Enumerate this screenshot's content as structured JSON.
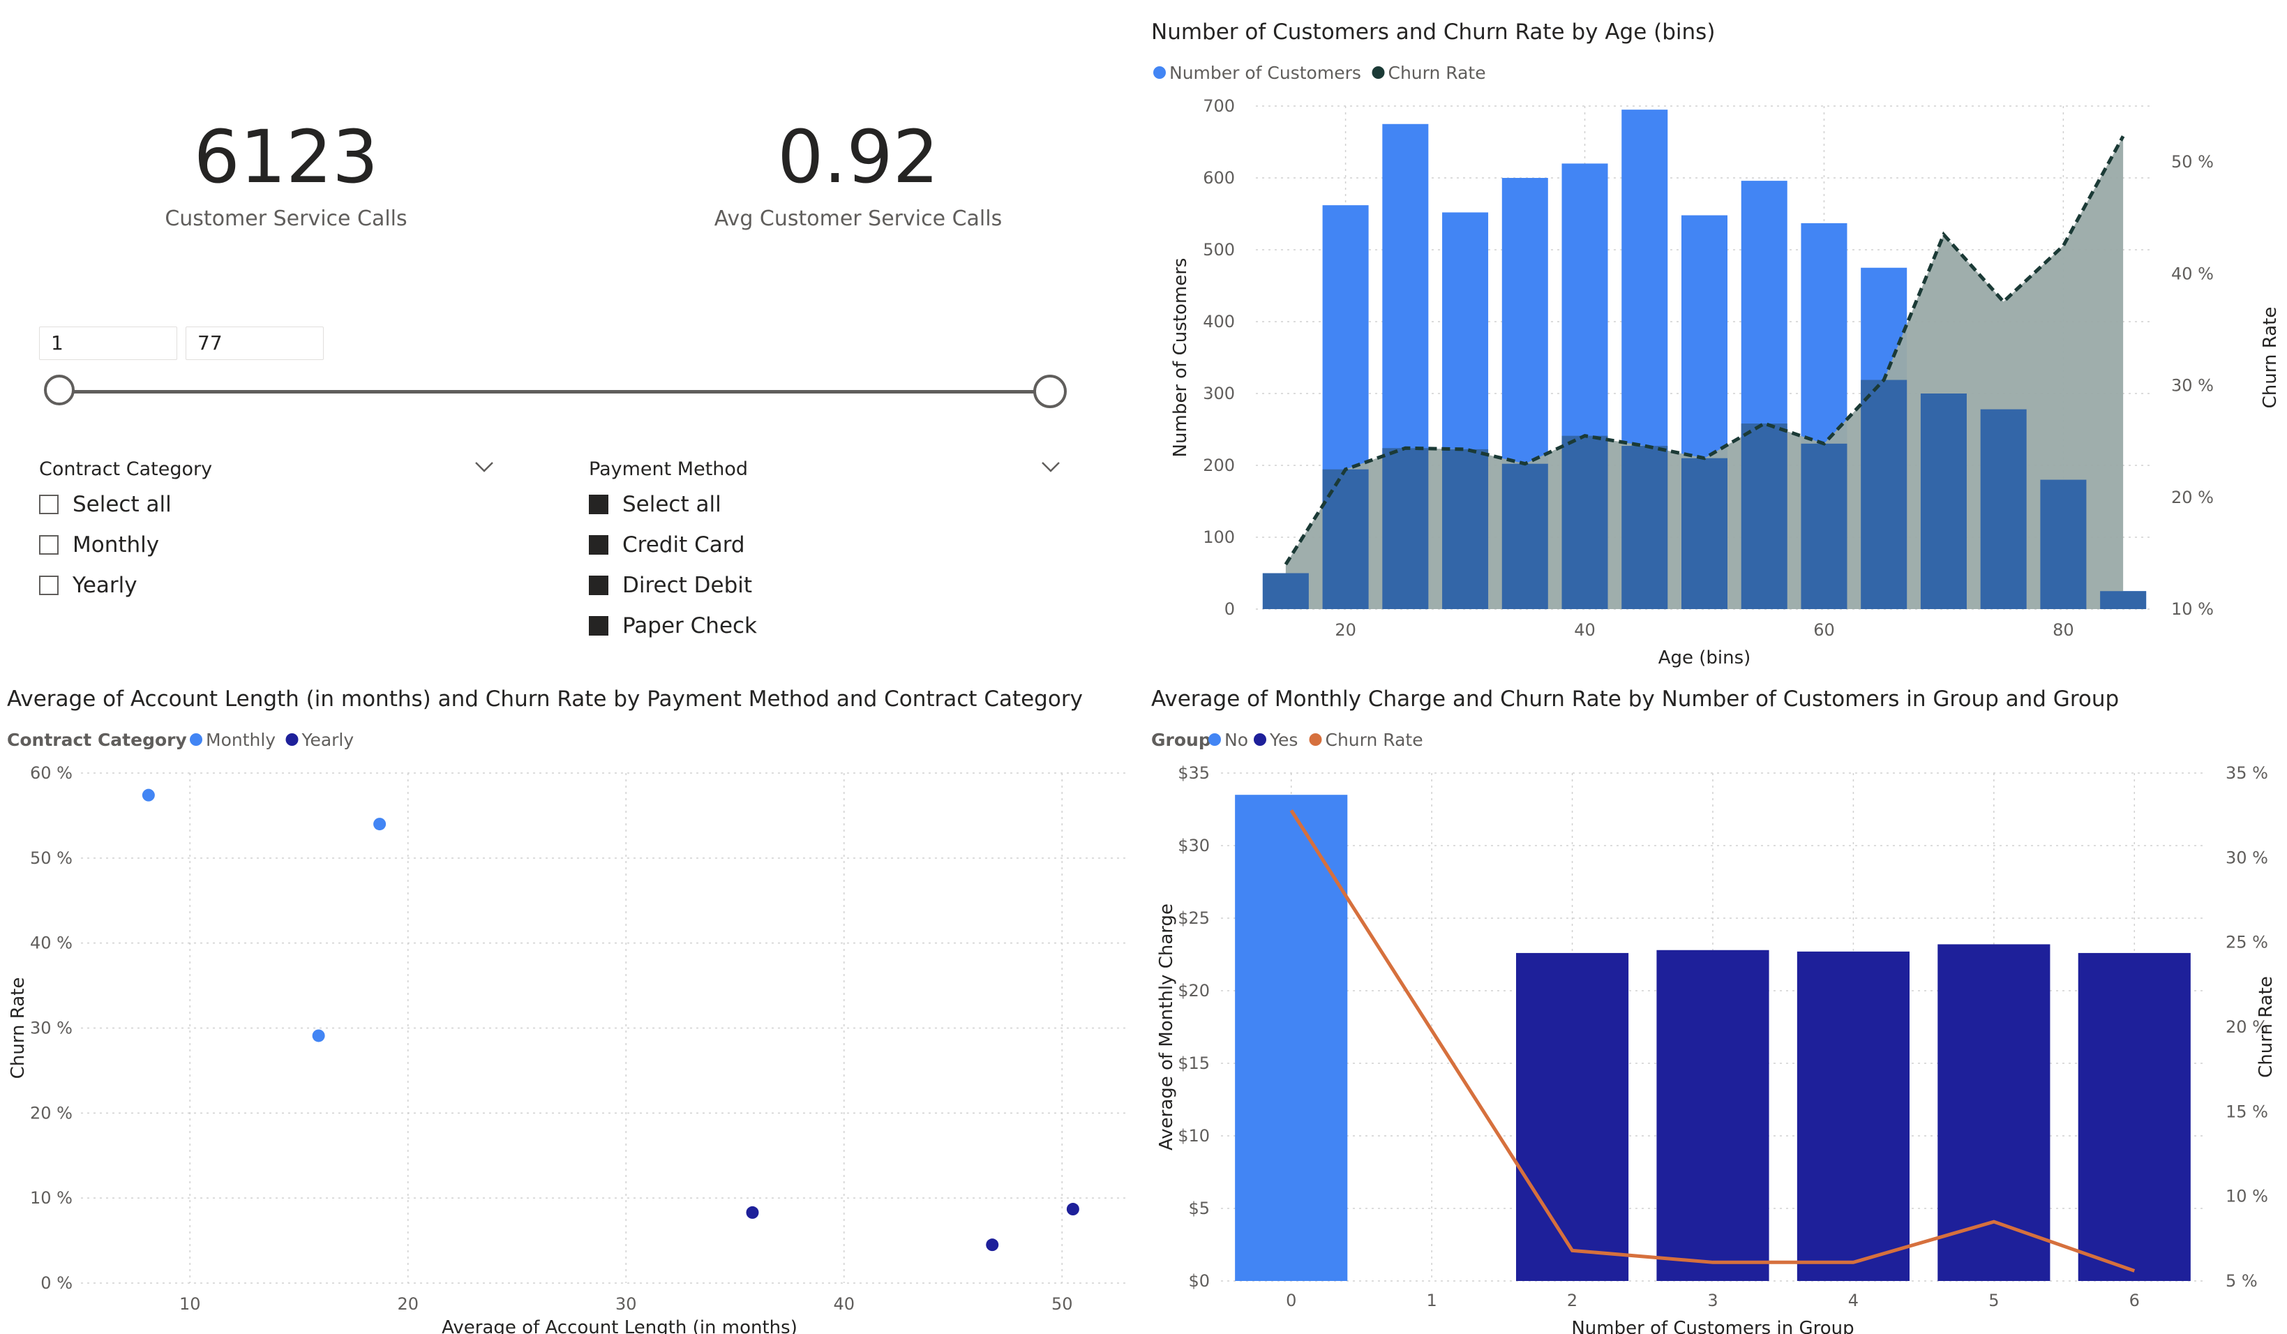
{
  "cards": [
    {
      "value": "6123",
      "label": "Customer Service Calls"
    },
    {
      "value": "0.92",
      "label": "Avg Customer Service Calls"
    }
  ],
  "range_slicer": {
    "min": "1",
    "max": "77"
  },
  "contract_slicer": {
    "title": "Contract Category",
    "items": [
      "Select all",
      "Monthly",
      "Yearly"
    ],
    "checked": [
      false,
      false,
      false
    ]
  },
  "payment_slicer": {
    "title": "Payment Method",
    "items": [
      "Select all",
      "Credit Card",
      "Direct Debit",
      "Paper Check"
    ],
    "checked": [
      true,
      true,
      true,
      true
    ]
  },
  "colors": {
    "primary_blue": "#4285f4",
    "navy": "#1e209a",
    "teal_dark": "#1b3a36",
    "gray_area": "#9aaaa8",
    "orange": "#d6703d",
    "dark_blue_bar": "#3366a8"
  },
  "chart_data": [
    {
      "type": "bar",
      "title": "Number of Customers and Churn Rate by Age (bins)",
      "legend": [
        "Number of Customers",
        "Churn Rate"
      ],
      "xlabel": "Age (bins)",
      "ylabel": "Number of Customers",
      "y2label": "Churn Rate",
      "x": [
        15,
        20,
        25,
        30,
        35,
        40,
        45,
        50,
        55,
        60,
        65,
        70,
        75,
        80,
        85
      ],
      "x_ticks": [
        "20",
        "40",
        "60",
        "80"
      ],
      "ylim": [
        0,
        700
      ],
      "y_ticks": [
        "0",
        "100",
        "200",
        "300",
        "400",
        "500",
        "600",
        "700"
      ],
      "y2lim": [
        10,
        55
      ],
      "y2_ticks": [
        "10 %",
        "20 %",
        "30 %",
        "40 %",
        "50 %"
      ],
      "series": [
        {
          "name": "Number of Customers",
          "values": [
            50,
            562,
            675,
            552,
            600,
            620,
            695,
            548,
            596,
            537,
            475,
            300,
            278,
            180,
            25
          ]
        },
        {
          "name": "Churn Rate",
          "values": [
            14,
            22.5,
            24.4,
            24.3,
            23,
            25.5,
            24.6,
            23.5,
            26.6,
            24.8,
            30.5,
            43.5,
            37.5,
            42.5,
            52.3
          ]
        }
      ]
    },
    {
      "type": "scatter",
      "title": "Average of Account Length (in months) and Churn Rate by Payment Method and Contract Category",
      "legend_title": "Contract Category",
      "legend": [
        "Monthly",
        "Yearly"
      ],
      "xlabel": "Average of Account Length (in months)",
      "ylabel": "Churn Rate",
      "xlim": [
        5,
        53
      ],
      "x_ticks": [
        "10",
        "20",
        "30",
        "40",
        "50"
      ],
      "ylim": [
        0,
        60
      ],
      "y_ticks": [
        "0 %",
        "10 %",
        "20 %",
        "30 %",
        "40 %",
        "50 %",
        "60 %"
      ],
      "series": [
        {
          "name": "Monthly",
          "points": [
            [
              8.1,
              57.4
            ],
            [
              18.7,
              54.0
            ],
            [
              15.9,
              29.1
            ]
          ]
        },
        {
          "name": "Yearly",
          "points": [
            [
              35.8,
              8.3
            ],
            [
              46.8,
              4.5
            ],
            [
              50.5,
              8.7
            ]
          ]
        }
      ]
    },
    {
      "type": "bar",
      "title": "Average of Monthly Charge and Churn Rate by Number of Customers in Group and Group",
      "legend_title": "Group",
      "legend": [
        "No",
        "Yes",
        "Churn Rate"
      ],
      "xlabel": "Number of Customers in Group",
      "ylabel": "Average of Monthly Charge",
      "y2label": "Churn Rate",
      "categories": [
        "0",
        "1",
        "2",
        "3",
        "4",
        "5",
        "6"
      ],
      "ylim": [
        0,
        35
      ],
      "y_ticks": [
        "$0",
        "$5",
        "$10",
        "$15",
        "$20",
        "$25",
        "$30",
        "$35"
      ],
      "y2lim": [
        5,
        35
      ],
      "y2_ticks": [
        "5 %",
        "10 %",
        "15 %",
        "20 %",
        "25 %",
        "30 %",
        "35 %"
      ],
      "series": [
        {
          "name": "No",
          "values": [
            33.5,
            null,
            null,
            null,
            null,
            null,
            null
          ]
        },
        {
          "name": "Yes",
          "values": [
            null,
            null,
            22.6,
            22.8,
            22.7,
            23.2,
            22.6
          ]
        },
        {
          "name": "Churn Rate",
          "values": [
            32.8,
            null,
            6.8,
            6.1,
            6.1,
            8.5,
            5.6
          ]
        }
      ]
    }
  ]
}
